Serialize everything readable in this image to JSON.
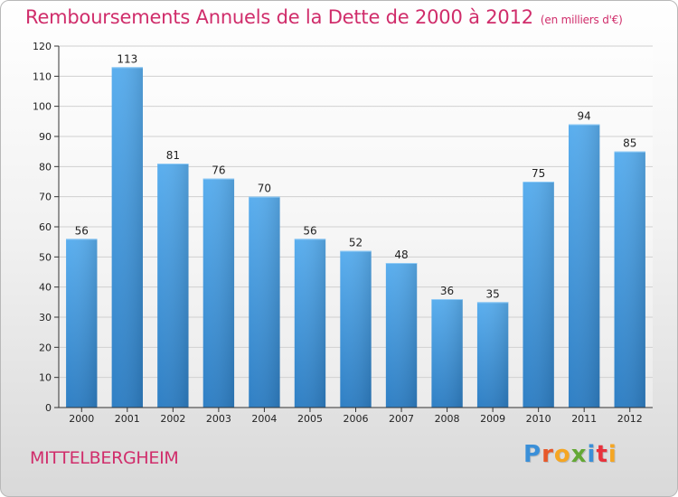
{
  "title": "Remboursements Annuels de la Dette de 2000 à 2012",
  "unit_note": "(en milliers d'€)",
  "place": "MITTELBERGHEIM",
  "logo": {
    "letters": [
      "P",
      "r",
      "o",
      "x",
      "i",
      "t",
      "i"
    ],
    "colors": [
      "#3a8fd8",
      "#e7592a",
      "#f5a623",
      "#63a835",
      "#3a8fd8",
      "#e8323c",
      "#f5a623"
    ]
  },
  "chart_data": {
    "type": "bar",
    "categories": [
      "2000",
      "2001",
      "2002",
      "2003",
      "2004",
      "2005",
      "2006",
      "2007",
      "2008",
      "2009",
      "2010",
      "2011",
      "2012"
    ],
    "values": [
      56,
      113,
      81,
      76,
      70,
      56,
      52,
      48,
      36,
      35,
      75,
      94,
      85
    ],
    "ylim": [
      0,
      120
    ],
    "yticks": [
      0,
      10,
      20,
      30,
      40,
      50,
      60,
      70,
      80,
      90,
      100,
      110,
      120
    ],
    "grid": true,
    "bar_color": "#4ba2e6"
  }
}
